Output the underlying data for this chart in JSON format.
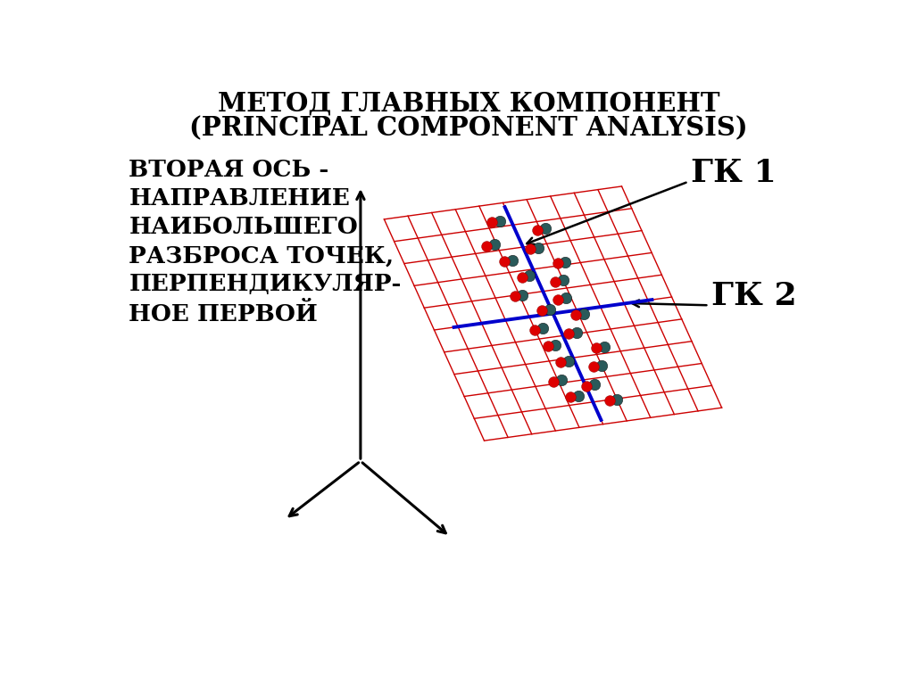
{
  "title_line1": "МЕТОД ГЛАВНЫХ КОМПОНЕНТ",
  "title_line2": "(PRINCIPAL COMPONENT ANALYSIS)",
  "left_text": "ВТОРАЯ ОСЬ -\nНАПРАВЛЕНИЕ\nНАИБОЛЬШЕГО\nРАЗБРОСА ТОЧЕК,\nПЕРПЕНДИКУЛЯР-\nНОЕ ПЕРВОЙ",
  "label_gk1": "ГК 1",
  "label_gk2": "ГК 2",
  "bg_color": "#ffffff",
  "grid_color": "#cc0000",
  "axis_color": "#000000",
  "pc1_color": "#0000cc",
  "pc2_color": "#0000cc",
  "dot_red": "#dd0000",
  "dot_dark": "#2a5a5a"
}
